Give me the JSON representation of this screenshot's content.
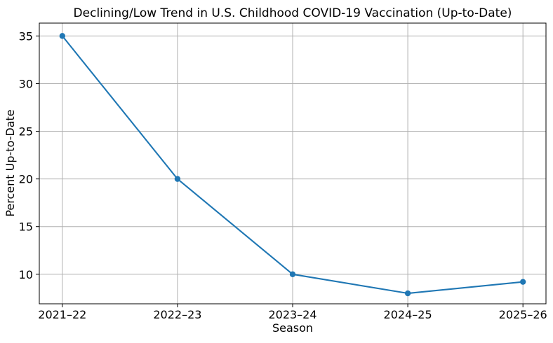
{
  "chart_data": {
    "type": "line",
    "title": "Declining/Low Trend in U.S. Childhood COVID-19 Vaccination (Up-to-Date)",
    "xlabel": "Season",
    "ylabel": "Percent Up-to-Date",
    "categories": [
      "2021–22",
      "2022–23",
      "2023–24",
      "2024–25",
      "2025–26"
    ],
    "series": [
      {
        "name": "Percent Up-to-Date",
        "values": [
          35,
          20,
          10,
          8,
          9.2
        ]
      }
    ],
    "yticks": [
      10,
      15,
      20,
      25,
      30,
      35
    ],
    "ylim": [
      6.9,
      36.35
    ],
    "grid": true,
    "legend_position": "none",
    "marker": "o",
    "colors": {
      "line": "#1f77b4",
      "marker": "#1f77b4",
      "grid": "#b0b0b0",
      "spine": "#000000",
      "text": "#000000",
      "background": "#ffffff"
    }
  }
}
